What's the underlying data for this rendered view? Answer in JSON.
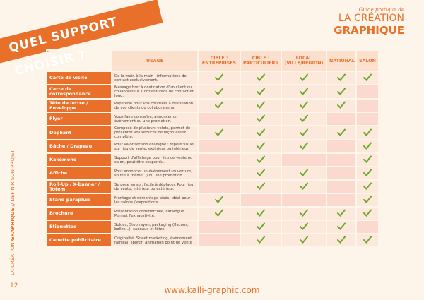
{
  "header": {
    "banner": "QUEL SUPPORT CHOISIR ?",
    "guide": "Guide pratique de",
    "brand_line1": "LA CRÉATION",
    "brand_line2": "GRAPHIQUE"
  },
  "side_text": {
    "part1": "LA CRÉATION ",
    "part2": "GRAPHIQUE",
    "part3": " // DÉFINIR SON PROJET"
  },
  "page_number": "12",
  "footer": "www.kalli-graphic.com",
  "table": {
    "columns": [
      "USAGE",
      "CIBLE : ENTREPRISES",
      "CIBLE : PARTICULIERS",
      "LOCAL (VILLE/RÉGION)",
      "NATIONAL",
      "SALON"
    ],
    "rows": [
      {
        "label": "Carte de visite",
        "usage": "De la main à la main : informations de contact exclusivement.",
        "checks": [
          true,
          true,
          true,
          true,
          true
        ]
      },
      {
        "label": "Carte de correspondance",
        "usage": "Message bref à destination d'un client ou collaborateur. Contient infos de contact et logo.",
        "checks": [
          true,
          true,
          true,
          true,
          false
        ]
      },
      {
        "label": "Tête de lettre / Enveloppe",
        "usage": "Papeterie pour vos courriers à destination de vos clients ou collaborateurs.",
        "checks": [
          true,
          true,
          true,
          true,
          false
        ]
      },
      {
        "label": "Flyer",
        "usage": "Vous faire connaître, annoncer un évènement ou une promotion.",
        "checks": [
          false,
          true,
          true,
          false,
          false
        ]
      },
      {
        "label": "Dépliant",
        "usage": "Composé de plusieurs volets, permet de présenter vos services de façon assez complète.",
        "checks": [
          true,
          true,
          true,
          true,
          true
        ]
      },
      {
        "label": "Bâche / Drapeau",
        "usage": "Pour valoriser son enseigne : repère visuel sur lieu de vente, extérieur ou intérieur.",
        "checks": [
          false,
          true,
          true,
          false,
          true
        ]
      },
      {
        "label": "Kakémono",
        "usage": "Support d'affichage pour lieu de vente ou salon, peut être suspendu.",
        "checks": [
          false,
          true,
          false,
          false,
          true
        ]
      },
      {
        "label": "Affiche",
        "usage": "Pour annoncer un évènement (ouverture, soirée à thème...) ou une promotion.",
        "checks": [
          false,
          true,
          true,
          false,
          true
        ]
      },
      {
        "label": "Roll-Up / X-banner / Totem",
        "usage": "Se pose au sol, facile à déplacer. Pour lieu de vente, intérieur ou extérieur.",
        "checks": [
          false,
          true,
          true,
          false,
          true
        ]
      },
      {
        "label": "Stand parapluie",
        "usage": "Montage et démontage aisés, idéal pour les salons / expositions.",
        "checks": [
          true,
          false,
          false,
          false,
          true
        ]
      },
      {
        "label": "Brochure",
        "usage": "Présentation commerciale, catalogue. Permet l'exhaustivité.",
        "checks": [
          true,
          true,
          true,
          true,
          true
        ]
      },
      {
        "label": "Etiquettes",
        "usage": "Soldes, Stop rayon, packaging (flacons, bolles...), cadeaux et fêtes.",
        "checks": [
          false,
          true,
          true,
          true,
          false
        ]
      },
      {
        "label": "Canette publicitaire",
        "usage": "Originalité. Street marketing, évènement familial, sportif, animation point de vente",
        "checks": [
          false,
          true,
          true,
          true,
          true
        ]
      }
    ]
  }
}
